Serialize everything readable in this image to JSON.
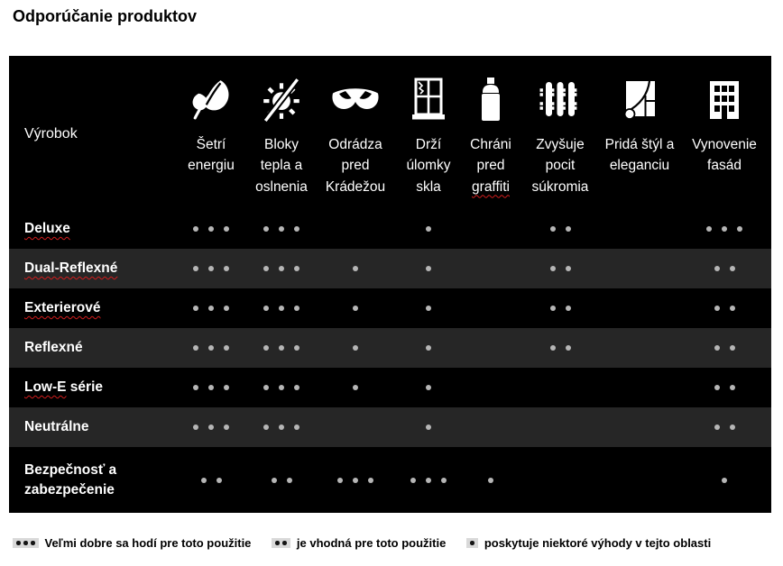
{
  "title": "Odporúčanie produktov",
  "table": {
    "product_column_header": "Výrobok",
    "columns": [
      {
        "icon": "leaf-icon",
        "label": "Šetrí energiu"
      },
      {
        "icon": "sun-blocked-icon",
        "label": "Bloky tepla a oslnenia"
      },
      {
        "icon": "burglar-mask-icon",
        "label": "Odrádza pred Krádežou"
      },
      {
        "icon": "broken-window-icon",
        "label": "Drží úlomky skla"
      },
      {
        "icon": "spray-can-icon",
        "label": "Chráni pred",
        "misspelled_word": "graffiti"
      },
      {
        "icon": "picket-fence-icon",
        "label": "Zvyšuje pocit súkromia"
      },
      {
        "icon": "curtain-window-icon",
        "label": "Pridá štýl a eleganciu"
      },
      {
        "icon": "building-icon",
        "label": "Vynovenie fasád"
      }
    ],
    "rows": [
      {
        "label": "Deluxe",
        "misspelled_part": "Deluxe",
        "ratings": [
          3,
          3,
          0,
          1,
          0,
          2,
          0,
          3
        ]
      },
      {
        "label": "Dual-Reflexné",
        "misspelled_part": "Dual-Reflexné",
        "ratings": [
          3,
          3,
          1,
          1,
          0,
          2,
          0,
          2
        ]
      },
      {
        "label": "Exterierové",
        "misspelled_part": "Exterierové",
        "ratings": [
          3,
          3,
          1,
          1,
          0,
          2,
          0,
          2
        ]
      },
      {
        "label": "Reflexné",
        "ratings": [
          3,
          3,
          1,
          1,
          0,
          2,
          0,
          2
        ]
      },
      {
        "label": "Low-E série",
        "misspelled_part": "Low-E",
        "ratings": [
          3,
          3,
          1,
          1,
          0,
          0,
          0,
          2
        ]
      },
      {
        "label": "Neutrálne",
        "ratings": [
          3,
          3,
          0,
          1,
          0,
          0,
          0,
          2
        ]
      },
      {
        "label": "Bezpečnosť a zabezpečenie",
        "ratings": [
          2,
          2,
          3,
          3,
          1,
          0,
          0,
          1
        ]
      }
    ]
  },
  "legend": [
    {
      "dots": 3,
      "text": "Veľmi dobre sa hodí pre toto použitie"
    },
    {
      "dots": 2,
      "text": "je vhodná pre toto použitie"
    },
    {
      "dots": 1,
      "text": "poskytuje niektoré výhody v tejto oblasti"
    }
  ],
  "colors": {
    "table_background": "#000000",
    "alternate_row_background": "#262626",
    "rating_dot": "#b6b6b6",
    "legend_chip_background": "#d9d9d9",
    "spellcheck_underline": "#d21d1d",
    "text_on_table": "#ffffff",
    "text_on_page": "#000000"
  }
}
